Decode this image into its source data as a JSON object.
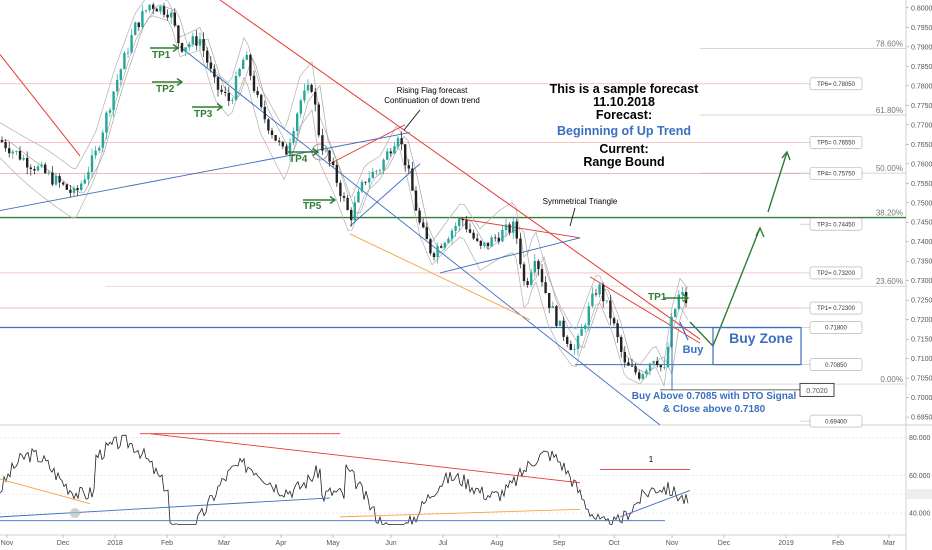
{
  "chart_data": {
    "type": "candlestick-forecast",
    "x_axis_labels": [
      "Nov",
      "Dec",
      "2018",
      "Feb",
      "Mar",
      "Apr",
      "May",
      "Jun",
      "Jul",
      "Aug",
      "Sep",
      "Oct",
      "Nov",
      "Dec",
      "2019",
      "Feb",
      "Mar"
    ],
    "price_axis": {
      "ticks": [
        "0.80000",
        "0.79500",
        "0.79000",
        "0.78500",
        "0.78000",
        "0.77500",
        "0.77000",
        "0.76500",
        "0.76000",
        "0.75500",
        "0.75000",
        "0.74500",
        "0.74000",
        "0.73500",
        "0.73000",
        "0.72500",
        "0.72000",
        "0.71500",
        "0.71000",
        "0.70500",
        "0.70000",
        "0.69500"
      ],
      "range": [
        0.693,
        0.802
      ]
    },
    "fib_levels": [
      {
        "label": "78.60%",
        "price": 0.7896
      },
      {
        "label": "61.80%",
        "price": 0.7725
      },
      {
        "label": "50.00%",
        "price": 0.7576
      },
      {
        "label": "38.20%",
        "price": 0.7462
      },
      {
        "label": "23.60%",
        "price": 0.7286
      },
      {
        "label": "0.00%",
        "price": 0.7035
      }
    ],
    "tp_boxes": [
      {
        "label": "TP6= 0.78050",
        "price": 0.7805
      },
      {
        "label": "TP5= 0.76550",
        "price": 0.7655
      },
      {
        "label": "TP4= 0.75750",
        "price": 0.7575
      },
      {
        "label": "TP3= 0.74450",
        "price": 0.7445
      },
      {
        "label": "TP2= 0.73200",
        "price": 0.732
      },
      {
        "label": "TP1= 0.72300",
        "price": 0.723
      },
      {
        "label": "0.71800",
        "price": 0.718
      },
      {
        "label": "0.70850",
        "price": 0.7085
      },
      {
        "label": "0.69400",
        "price": 0.694
      }
    ],
    "current_price_label": "0.7020",
    "current_price": 0.702,
    "tp_markers": [
      "TP1",
      "TP2",
      "TP3",
      "TP4",
      "TP5",
      "TP1"
    ],
    "annotations": {
      "rising_flag": "Rising Flag forecast",
      "continuation": "Continuation of down trend",
      "sym_triangle": "Symmetrical Triangle",
      "buy_zone": "Buy Zone",
      "buy": "Buy",
      "note_line1": "Buy Above 0.7085 with DTO Signal",
      "note_line2": "& Close above 0.7180"
    },
    "forecast_box": {
      "line1": "This is a sample forecast",
      "line2": "11.10.2018",
      "line3": "Forecast:",
      "line4": "Beginning of Up Trend",
      "line5": "Current:",
      "line6": "Range Bound"
    },
    "oscillator": {
      "ticks": [
        "80.000",
        "60.000",
        "50.0000",
        "40.000"
      ],
      "range": [
        30,
        85
      ],
      "level_label": "50.0000",
      "marker": "1"
    },
    "colors": {
      "up": "#26a69a",
      "down": "#222222",
      "trend_red": "#e53935",
      "trend_blue": "#3b6fbf",
      "green_line": "#2e7d32",
      "orange": "#f5a142",
      "tp_green": "#2e7d32"
    }
  }
}
